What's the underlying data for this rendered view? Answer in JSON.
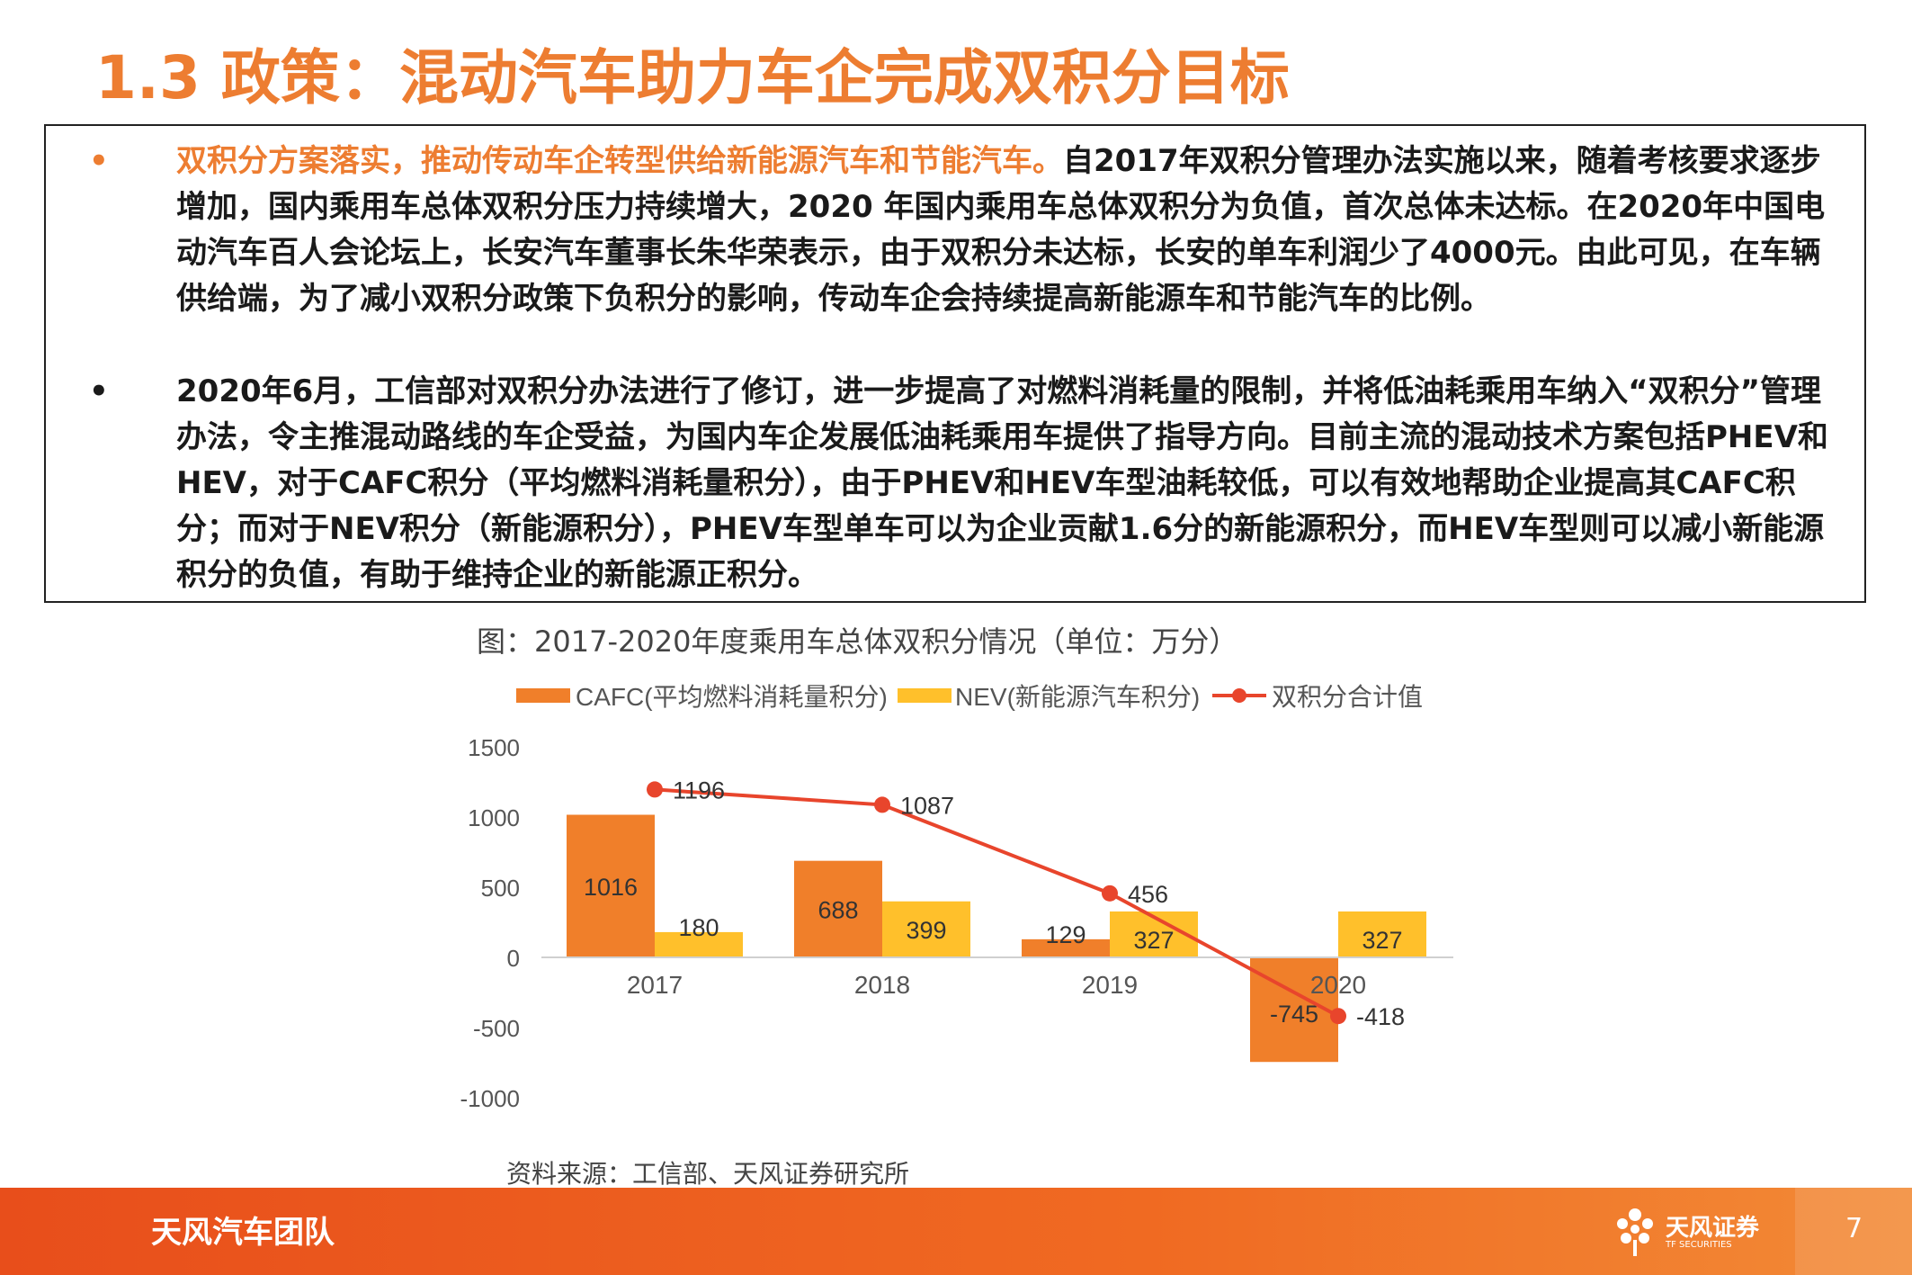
{
  "slide": {
    "title": "1.3 政策：混动汽车助力车企完成双积分目标",
    "bullet1_highlight": "双积分方案落实，推动传动车企转型供给新能源汽车和节能汽车。",
    "bullet1_rest": "自2017年双积分管理办法实施以来，随着考核要求逐步增加，国内乘用车总体双积分压力持续增大，2020 年国内乘用车总体双积分为负值，首次总体未达标。在2020年中国电动汽车百人会论坛上，长安汽车董事长朱华荣表示，由于双积分未达标，长安的单车利润少了4000元。由此可见，在车辆供给端，为了减小双积分政策下负积分的影响，传动车企会持续提高新能源车和节能汽车的比例。",
    "bullet2": "2020年6月，工信部对双积分办法进行了修订，进一步提高了对燃料消耗量的限制，并将低油耗乘用车纳入“双积分”管理办法，令主推混动路线的车企受益，为国内车企发展低油耗乘用车提供了指导方向。目前主流的混动技术方案包括PHEV和HEV，对于CAFC积分（平均燃料消耗量积分），由于PHEV和HEV车型油耗较低，可以有效地帮助企业提高其CAFC积分；而对于NEV积分（新能源积分），PHEV车型单车可以为企业贡献1.6分的新能源积分，而HEV车型则可以减小新能源积分的负值，有助于维持企业的新能源正积分。",
    "bullet_symbol": "•",
    "caption": "图：2017-2020年度乘用车总体双积分情况（单位：万分）",
    "source": "资料来源：工信部、天风证券研究所",
    "footer_team": "天风汽车团队",
    "logo_name": "天风证券",
    "logo_sub": "TF SECURITIES",
    "page_number": "7"
  },
  "colors": {
    "accent": "#ED7D31",
    "cafc": "#F07F2A",
    "nev": "#FFC02B",
    "line": "#E8452C"
  },
  "chart_data": {
    "type": "bar",
    "categories": [
      "2017",
      "2018",
      "2019",
      "2020"
    ],
    "series": [
      {
        "name": "CAFC(平均燃料消耗量积分)",
        "type": "bar",
        "values": [
          1016,
          688,
          129,
          -745
        ]
      },
      {
        "name": "NEV(新能源汽车积分)",
        "type": "bar",
        "values": [
          180,
          399,
          327,
          327
        ]
      },
      {
        "name": "双积分合计值",
        "type": "line",
        "values": [
          1196,
          1087,
          456,
          -418
        ]
      }
    ],
    "yticks": [
      1500,
      1000,
      500,
      0,
      -500,
      -1000
    ],
    "ylim": [
      -1000,
      1500
    ],
    "grid": false,
    "legend": "top"
  }
}
